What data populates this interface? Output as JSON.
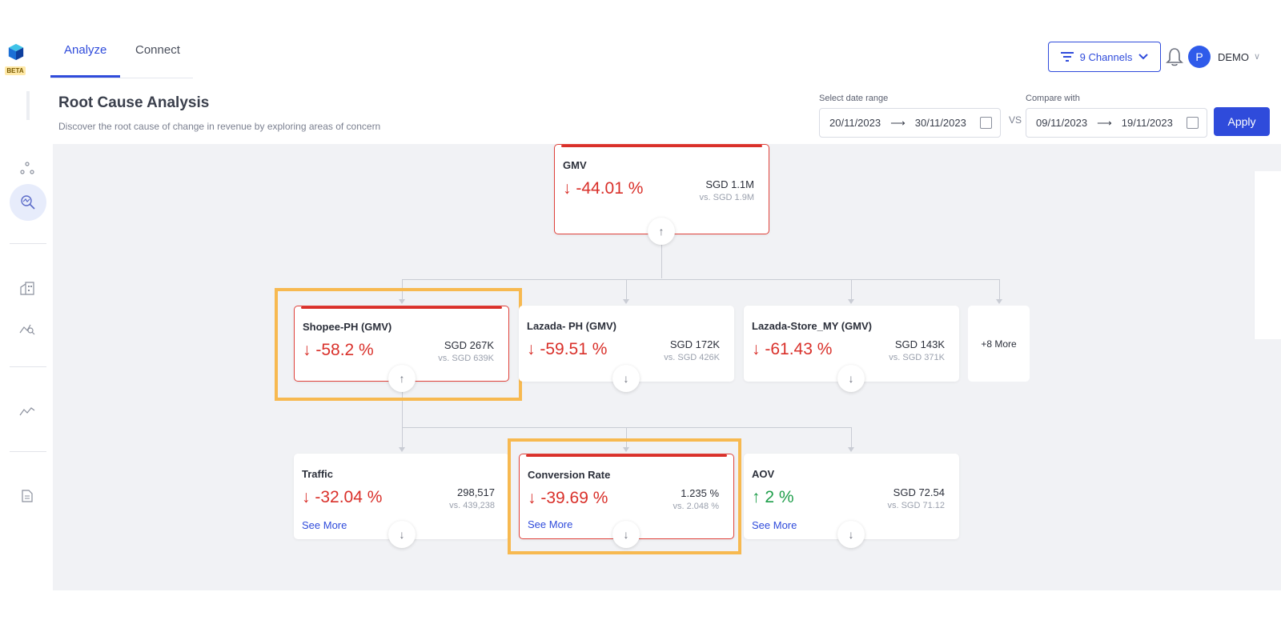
{
  "app": {
    "beta_label": "BETA"
  },
  "nav": {
    "tabs": [
      {
        "label": "Analyze"
      },
      {
        "label": "Connect"
      }
    ]
  },
  "topbar": {
    "channels_label": "9 Channels",
    "avatar_initial": "P",
    "user_name": "DEMO"
  },
  "header": {
    "title": "Root Cause Analysis",
    "subtitle": "Discover the root cause of change in revenue by exploring areas of concern",
    "date_range": {
      "label": "Select date range",
      "start": "20/11/2023",
      "end": "30/11/2023"
    },
    "vs_label": "VS",
    "compare": {
      "label": "Compare with",
      "start": "09/11/2023",
      "end": "19/11/2023"
    },
    "arrow": "⟶",
    "apply_label": "Apply"
  },
  "tree": {
    "root": {
      "name": "GMV",
      "pct": "-44.01 %",
      "direction": "down",
      "value": "SGD 1.1M",
      "compare": "vs. SGD 1.9M"
    },
    "level1": [
      {
        "name": "Shopee-PH (GMV)",
        "pct": "-58.2 %",
        "direction": "down",
        "value": "SGD 267K",
        "compare": "vs. SGD 639K"
      },
      {
        "name": "Lazada- PH (GMV)",
        "pct": "-59.51 %",
        "direction": "down",
        "value": "SGD 172K",
        "compare": "vs. SGD 426K"
      },
      {
        "name": "Lazada-Store_MY (GMV)",
        "pct": "-61.43 %",
        "direction": "down",
        "value": "SGD 143K",
        "compare": "vs. SGD 371K"
      }
    ],
    "more_label": "+8 More",
    "level2": [
      {
        "name": "Traffic",
        "pct": "-32.04 %",
        "direction": "down",
        "value": "298,517",
        "compare": "vs. 439,238",
        "see_more": "See More"
      },
      {
        "name": "Conversion Rate",
        "pct": "-39.69 %",
        "direction": "down",
        "value": "1.235 %",
        "compare": "vs. 2.048 %",
        "see_more": "See More"
      },
      {
        "name": "AOV",
        "pct": "2 %",
        "direction": "up",
        "value": "SGD 72.54",
        "compare": "vs. SGD 71.12",
        "see_more": "See More"
      }
    ]
  },
  "icons": {
    "down_arrow": "↓",
    "up_arrow": "↑",
    "chevron": "∨",
    "colors": {
      "accent": "#2f4bdb",
      "negative": "#d9302a",
      "positive": "#1e9e4a",
      "highlight": "#f7b950"
    }
  }
}
